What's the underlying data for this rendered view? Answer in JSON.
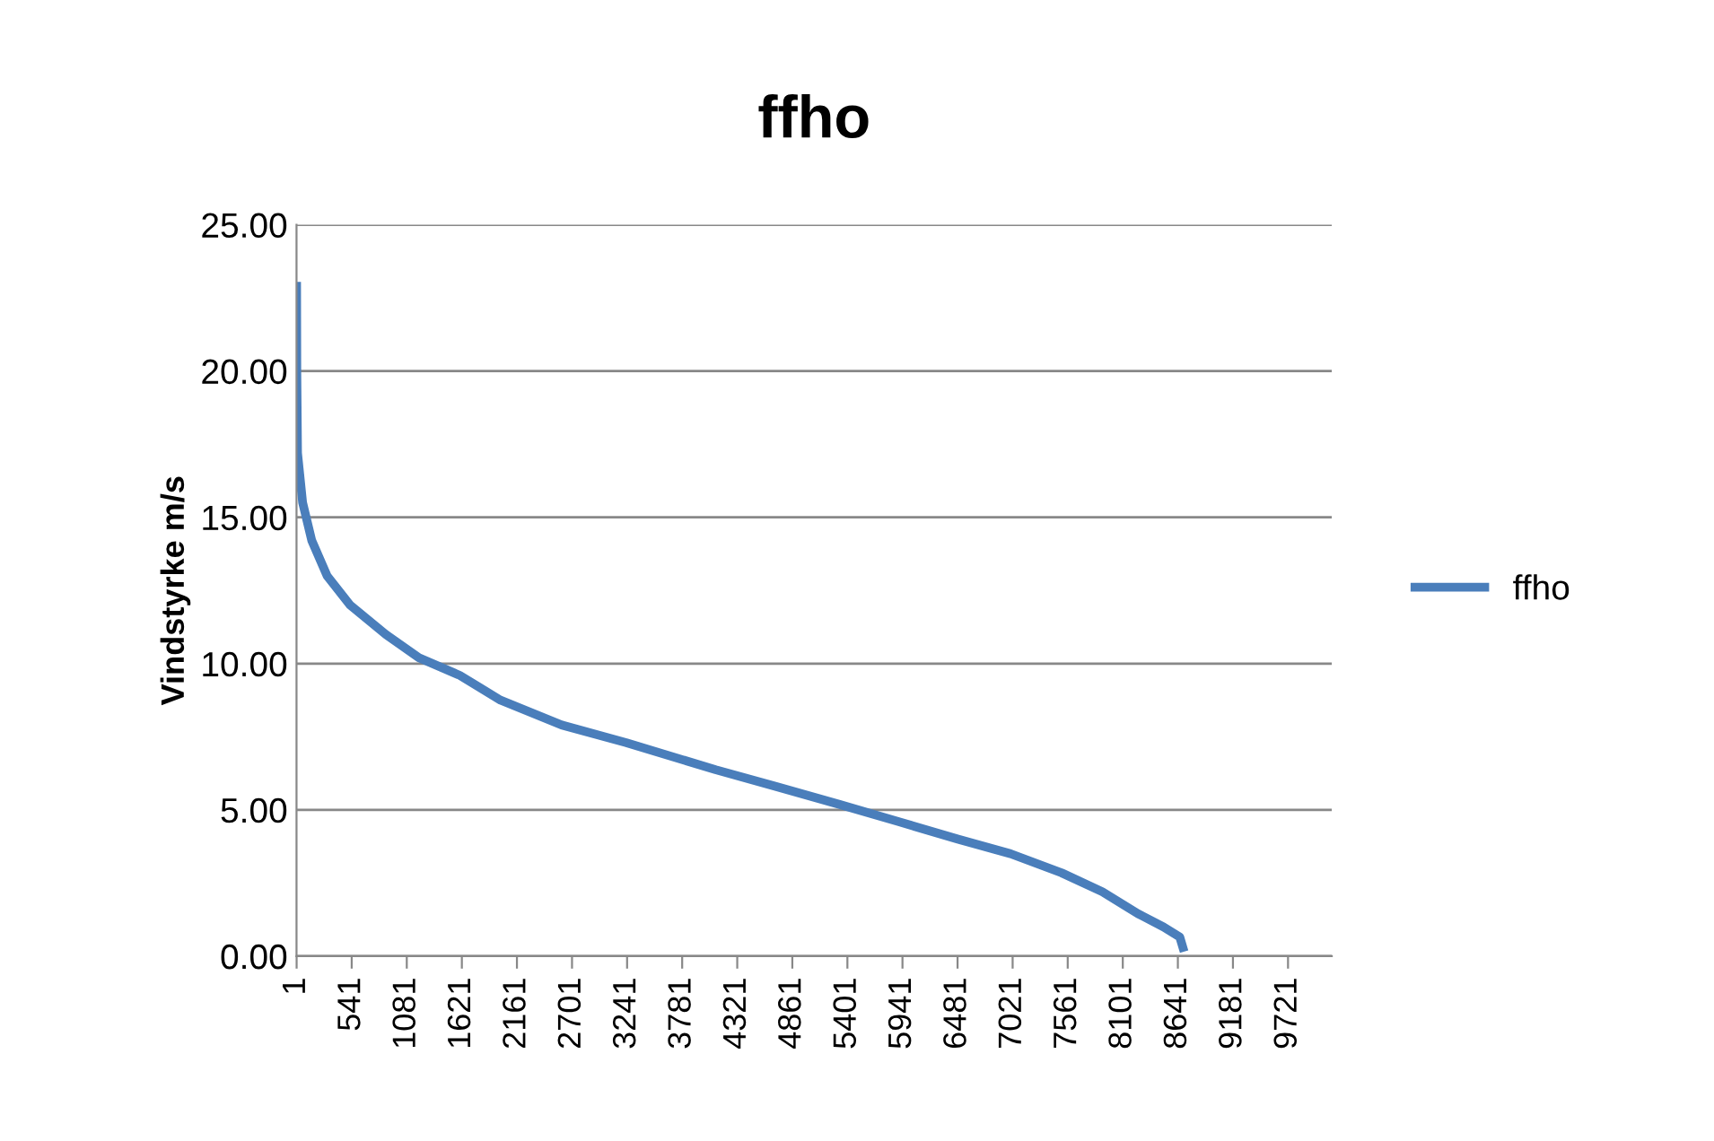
{
  "chart_data": {
    "type": "line",
    "title": "ffho",
    "ylabel": "Vindstyrke m/s",
    "series": [
      {
        "name": "ffho",
        "color": "#4a7ebb",
        "x": [
          1,
          3,
          10,
          60,
          150,
          300,
          525,
          875,
          1200,
          1600,
          2000,
          2600,
          3230,
          4110,
          4700,
          5330,
          5900,
          6485,
          7000,
          7500,
          7900,
          8250,
          8500,
          8660,
          8690
        ],
        "values": [
          22.9,
          20.0,
          17.2,
          15.5,
          14.2,
          13.0,
          12.0,
          11.0,
          10.2,
          9.6,
          8.75,
          7.9,
          7.3,
          6.37,
          5.8,
          5.18,
          4.6,
          4.0,
          3.5,
          2.85,
          2.2,
          1.45,
          1.0,
          0.65,
          0.3
        ]
      }
    ],
    "xlim": [
      0,
      10150
    ],
    "xticks": [
      1,
      541,
      1081,
      1621,
      2161,
      2701,
      3241,
      3781,
      4321,
      4861,
      5401,
      5941,
      6481,
      7021,
      7561,
      8101,
      8641,
      9181,
      9721
    ],
    "ylim": [
      0,
      25
    ],
    "yticks": [
      {
        "value": 0,
        "label": "0.00"
      },
      {
        "value": 5,
        "label": "5.00"
      },
      {
        "value": 10,
        "label": "10.00"
      },
      {
        "value": 15,
        "label": "15.00"
      },
      {
        "value": 20,
        "label": "20.00"
      },
      {
        "value": 25,
        "label": "25.00"
      }
    ],
    "grid": "y",
    "legend": "right",
    "marker": "none",
    "line_style": "solid"
  }
}
